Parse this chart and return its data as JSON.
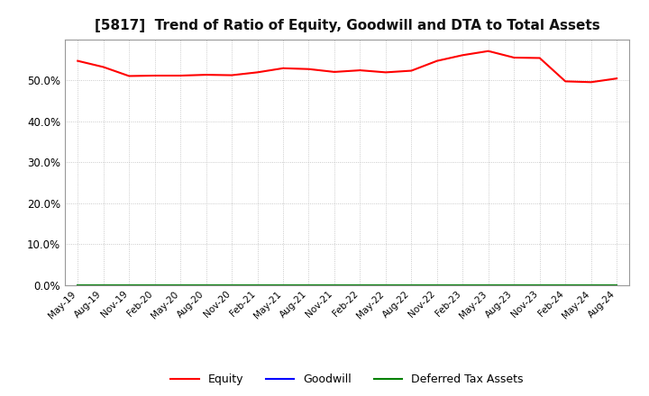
{
  "title": "[5817]  Trend of Ratio of Equity, Goodwill and DTA to Total Assets",
  "title_fontsize": 11,
  "x_labels": [
    "May-19",
    "Aug-19",
    "Nov-19",
    "Feb-20",
    "May-20",
    "Aug-20",
    "Nov-20",
    "Feb-21",
    "May-21",
    "Aug-21",
    "Nov-21",
    "Feb-22",
    "May-22",
    "Aug-22",
    "Nov-22",
    "Feb-23",
    "May-23",
    "Aug-23",
    "Nov-23",
    "Feb-24",
    "May-24",
    "Aug-24"
  ],
  "equity": [
    0.548,
    0.533,
    0.511,
    0.512,
    0.512,
    0.514,
    0.513,
    0.52,
    0.53,
    0.528,
    0.521,
    0.525,
    0.52,
    0.524,
    0.548,
    0.562,
    0.572,
    0.556,
    0.555,
    0.498,
    0.496,
    0.505
  ],
  "goodwill": [
    0.0,
    0.0,
    0.0,
    0.0,
    0.0,
    0.0,
    0.0,
    0.0,
    0.0,
    0.0,
    0.0,
    0.0,
    0.0,
    0.0,
    0.0,
    0.0,
    0.0,
    0.0,
    0.0,
    0.0,
    0.0,
    0.0
  ],
  "dta": [
    0.0,
    0.0,
    0.0,
    0.0,
    0.0,
    0.0,
    0.0,
    0.0,
    0.0,
    0.0,
    0.0,
    0.0,
    0.0,
    0.0,
    0.0,
    0.0,
    0.0,
    0.0,
    0.0,
    0.0,
    0.0,
    0.0
  ],
  "equity_color": "#FF0000",
  "goodwill_color": "#0000FF",
  "dta_color": "#008000",
  "ylim": [
    0.0,
    0.6
  ],
  "yticks": [
    0.0,
    0.1,
    0.2,
    0.3,
    0.4,
    0.5
  ],
  "background_color": "#FFFFFF",
  "grid_color": "#AAAAAA",
  "legend_labels": [
    "Equity",
    "Goodwill",
    "Deferred Tax Assets"
  ]
}
